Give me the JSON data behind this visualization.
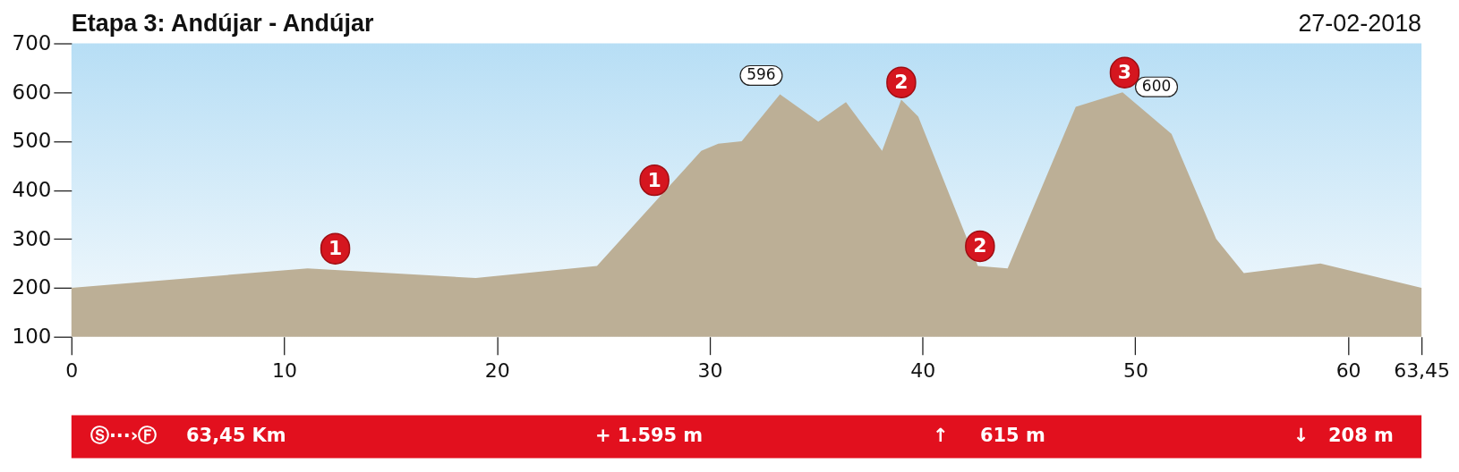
{
  "chart_data": {
    "type": "area",
    "title": "Etapa 3: Andújar - Andújar",
    "subtitle": "27-02-2018",
    "x": [
      0,
      11.1,
      19.0,
      24.7,
      29.6,
      30.4,
      31.5,
      33.3,
      35.1,
      36.4,
      38.1,
      39.0,
      39.8,
      42.6,
      44.0,
      47.2,
      49.4,
      51.7,
      53.8,
      55.1,
      58.7,
      63.45
    ],
    "series": [
      {
        "color": "#bcaf96",
        "values": [
          200,
          240,
          220,
          245,
          480,
          495,
          500,
          596,
          540,
          580,
          480,
          585,
          550,
          245,
          240,
          570,
          600,
          515,
          300,
          230,
          250,
          200
        ],
        "value_labels": [
          null,
          null,
          null,
          null,
          null,
          null,
          null,
          "596",
          null,
          null,
          null,
          null,
          null,
          null,
          null,
          null,
          "600",
          null,
          null,
          null,
          null,
          null
        ]
      }
    ],
    "xlim": [
      0,
      63.45
    ],
    "xticks": [
      0,
      10,
      20,
      30,
      40,
      50,
      60,
      {
        "value": 63.45,
        "label": "63,45"
      }
    ],
    "ylim": [
      100,
      700
    ],
    "yticks": [
      100,
      200,
      300,
      400,
      500,
      600,
      700
    ],
    "annotations": [
      {
        "text": "1",
        "x": 12.4,
        "y": 240
      },
      {
        "text": "1",
        "x": 27.4,
        "y": 380
      },
      {
        "text": "2",
        "x": 39.0,
        "y": 580
      },
      {
        "text": "2",
        "x": 42.7,
        "y": 245
      },
      {
        "text": "3",
        "x": 49.5,
        "y": 600
      },
      "Ⓢ···›Ⓕ",
      "63,45 Km",
      "+ 1.595 m",
      "↑",
      "615 m",
      "↓",
      "208 m"
    ]
  }
}
